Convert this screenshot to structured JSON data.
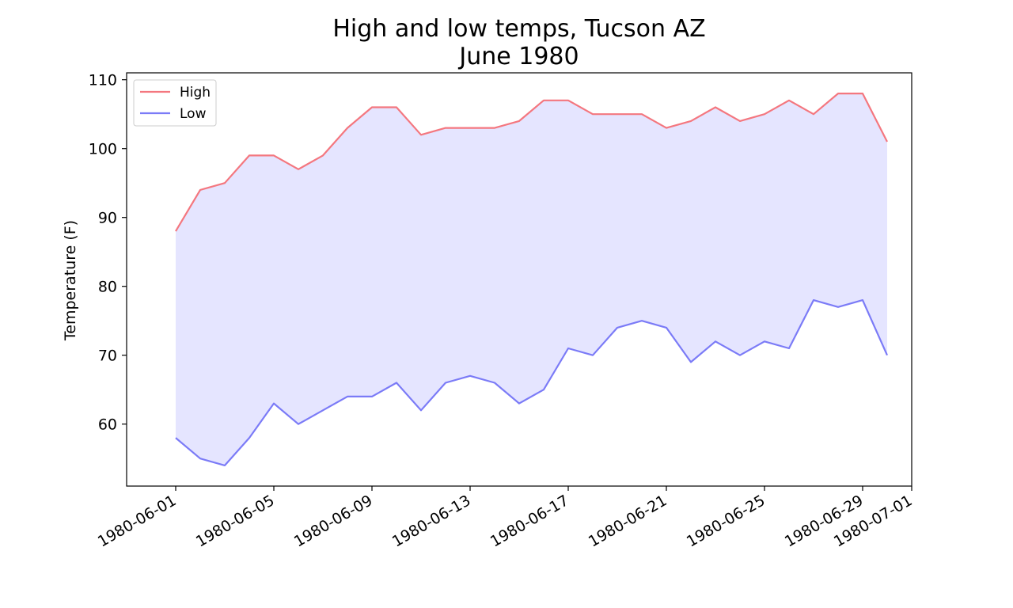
{
  "chart_data": {
    "type": "line",
    "title": "High and low temps, Tucson AZ",
    "subtitle": "June 1980",
    "xlabel": "",
    "ylabel": "Temperature (F)",
    "x": [
      "1980-06-01",
      "1980-06-02",
      "1980-06-03",
      "1980-06-04",
      "1980-06-05",
      "1980-06-06",
      "1980-06-07",
      "1980-06-08",
      "1980-06-09",
      "1980-06-10",
      "1980-06-11",
      "1980-06-12",
      "1980-06-13",
      "1980-06-14",
      "1980-06-15",
      "1980-06-16",
      "1980-06-17",
      "1980-06-18",
      "1980-06-19",
      "1980-06-20",
      "1980-06-21",
      "1980-06-22",
      "1980-06-23",
      "1980-06-24",
      "1980-06-25",
      "1980-06-26",
      "1980-06-27",
      "1980-06-28",
      "1980-06-29",
      "1980-06-30"
    ],
    "series": [
      {
        "name": "High",
        "color": "#f4777f",
        "values": [
          88,
          94,
          95,
          99,
          99,
          97,
          99,
          103,
          106,
          106,
          102,
          103,
          103,
          103,
          104,
          107,
          107,
          105,
          105,
          105,
          103,
          104,
          106,
          104,
          105,
          107,
          105,
          108,
          108,
          101
        ]
      },
      {
        "name": "Low",
        "color": "#7b7bf7",
        "values": [
          58,
          55,
          54,
          58,
          63,
          60,
          62,
          64,
          64,
          66,
          62,
          66,
          67,
          66,
          63,
          65,
          71,
          70,
          74,
          75,
          74,
          69,
          72,
          70,
          72,
          71,
          78,
          77,
          78,
          70
        ]
      }
    ],
    "fill_between": {
      "color": "#e5e5ff"
    },
    "xlim": [
      "1980-05-30",
      "1980-07-01"
    ],
    "ylim": [
      51,
      111
    ],
    "yticks": [
      60,
      70,
      80,
      90,
      100,
      110
    ],
    "xticks": [
      "1980-06-01",
      "1980-06-05",
      "1980-06-09",
      "1980-06-13",
      "1980-06-17",
      "1980-06-21",
      "1980-06-25",
      "1980-06-29",
      "1980-07-01"
    ],
    "grid": false,
    "legend_position": "top-left"
  }
}
